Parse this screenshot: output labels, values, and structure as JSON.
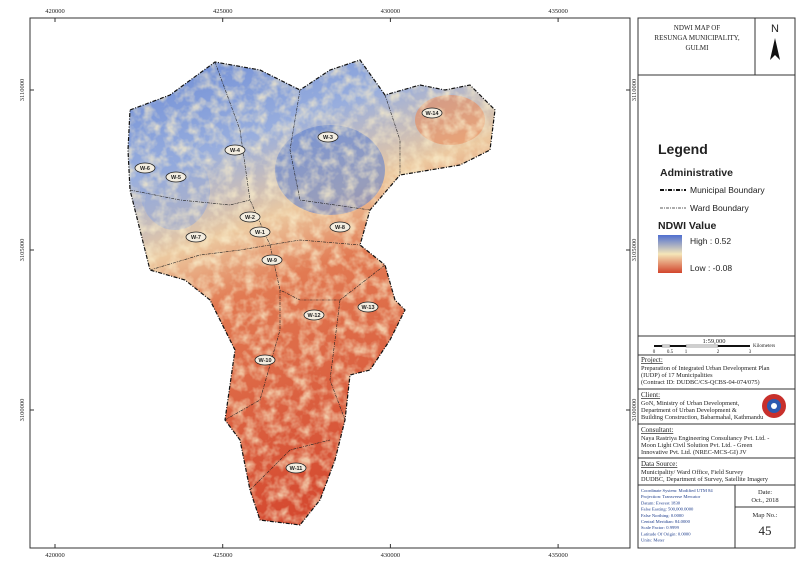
{
  "map": {
    "title": [
      "NDWI MAP OF",
      "RESUNGA MUNICIPALITY,",
      "GULMI"
    ],
    "north": "N",
    "xticks": [
      420000,
      425000,
      430000,
      435000
    ],
    "yticks": [
      3110000,
      3105000,
      3100000
    ],
    "wards": [
      "W-14",
      "W-3",
      "W-4",
      "W-6",
      "W-5",
      "W-2",
      "W-1",
      "W-8",
      "W-7",
      "W-9",
      "W-13",
      "W-12",
      "W-10",
      "W-11"
    ],
    "legend": {
      "heading": "Legend",
      "administrative": "Administrative",
      "municipal_boundary": "Municipal Boundary",
      "ward_boundary": "Ward Boundary",
      "ndwi_heading": "NDWI Value",
      "high": "High : 0.52",
      "low": "Low : -0.08"
    },
    "scale": {
      "ratio": "1:59,000",
      "unit": "Kilometers",
      "labels": [
        "0",
        "0.5",
        "1",
        "2",
        "3"
      ]
    },
    "project": {
      "heading": "Project:",
      "lines": [
        "Preparation of Integrated Urban Development Plan",
        "(IUDP) of 17 Municipalities",
        "(Contract ID: DUDBC/CS-QCBS-04-074/075)"
      ]
    },
    "client": {
      "heading": "Client:",
      "lines": [
        "GoN, Ministry of Urban Development,",
        "Department of Urban Development &",
        "Building Construction, Babarmahal, Kathmandu"
      ]
    },
    "consultant": {
      "heading": "Consultant:",
      "lines": [
        "Naya Rastriya Engineering Consultancy Pvt. Ltd. -",
        "Moon Light Civil Solution Pvt. Ltd. - Green",
        "Innovative Pvt. Ltd.  (NREC-MCS-GI) JV"
      ]
    },
    "data_source": {
      "heading": "Data Source:",
      "lines": [
        "Municipality/ Ward Office, Field Survey",
        "DUDBC, Department of Survey, Satellite Imagery"
      ]
    },
    "coordinate_system": [
      "Coordinate System: Modified UTM 84",
      "Projection: Transverse Mercator",
      "Datum: Everest 1830",
      "False Easting: 500,000.0000",
      "False Northing: 0.0000",
      "Central Meridian: 84.0000",
      "Scale Factor: 0.9999",
      "Latitude Of Origin: 0.0000",
      "Units: Meter"
    ],
    "date": {
      "heading": "Date:",
      "value": "Oct., 2018"
    },
    "map_no": {
      "heading": "Map No.:",
      "value": "45"
    }
  }
}
